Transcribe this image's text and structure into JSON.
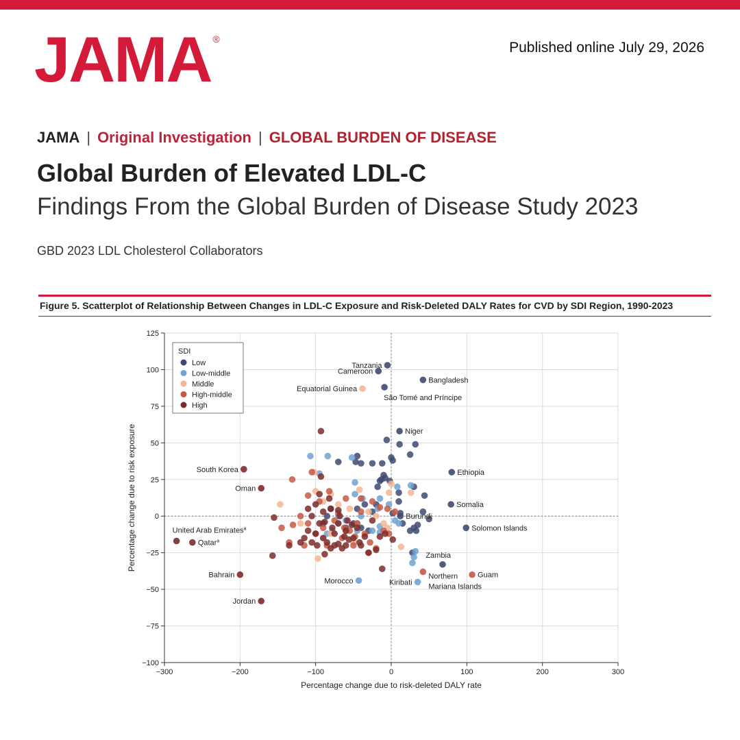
{
  "header": {
    "logo_text": "JAMA",
    "logo_mark": "®",
    "published": "Published online July 29, 2026"
  },
  "kicker": {
    "journal": "JAMA",
    "section": "Original Investigation",
    "topic": "GLOBAL BURDEN OF DISEASE",
    "separator": "|"
  },
  "article": {
    "title": "Global Burden of Elevated LDL-C",
    "subtitle": "Findings From the Global Burden of Disease Study 2023",
    "authors": "GBD 2023 LDL Cholesterol Collaborators"
  },
  "figure": {
    "caption": "Figure 5. Scatterplot of Relationship Between Changes in LDL-C Exposure and Risk-Deleted DALY Rates for CVD by SDI Region, 1990-2023"
  },
  "chart_data": {
    "type": "scatter",
    "xlabel": "Percentage change due to risk-deleted DALY rate",
    "ylabel": "Percentage change due to risk exposure",
    "xlim": [
      -300,
      300
    ],
    "ylim": [
      -100,
      125
    ],
    "xticks": [
      -300,
      -200,
      -100,
      0,
      100,
      200,
      300
    ],
    "yticks": [
      125,
      100,
      75,
      50,
      25,
      0,
      -25,
      -50,
      -75,
      -100
    ],
    "grid": true,
    "reference_lines": [
      "x = 0",
      "y = 0"
    ],
    "legend": {
      "title": "SDI",
      "placement": "top-left",
      "entries": [
        {
          "name": "Low",
          "color": "#3f4a70"
        },
        {
          "name": "Low-middle",
          "color": "#6fa3d2"
        },
        {
          "name": "Middle",
          "color": "#f5b592"
        },
        {
          "name": "High-middle",
          "color": "#c55a47"
        },
        {
          "name": "High",
          "color": "#7d2b2b"
        }
      ]
    },
    "labeled_points": [
      {
        "label": "Tanzania",
        "x": -5,
        "y": 103,
        "group": "Low",
        "anchor": "left"
      },
      {
        "label": "Cameroon",
        "x": -17,
        "y": 99,
        "group": "Low",
        "anchor": "left"
      },
      {
        "label": "Bangladesh",
        "x": 42,
        "y": 93,
        "group": "Low",
        "anchor": "right"
      },
      {
        "label": "Equatorial Guinea",
        "x": -38,
        "y": 87,
        "group": "Middle",
        "anchor": "left"
      },
      {
        "label": "São Tomé and Príncipe",
        "x": -9,
        "y": 88,
        "group": "Low",
        "anchor": "below-right"
      },
      {
        "label": "Niger",
        "x": 11,
        "y": 58,
        "group": "Low",
        "anchor": "right"
      },
      {
        "label": "South Korea",
        "x": -195,
        "y": 32,
        "group": "High",
        "anchor": "left"
      },
      {
        "label": "Oman",
        "x": -172,
        "y": 19,
        "group": "High",
        "anchor": "left"
      },
      {
        "label": "Ethiopia",
        "x": 80,
        "y": 30,
        "group": "Low",
        "anchor": "right"
      },
      {
        "label": "Somalia",
        "x": 79,
        "y": 8,
        "group": "Low",
        "anchor": "right"
      },
      {
        "label": "Burundi",
        "x": 12,
        "y": 0,
        "group": "Low",
        "anchor": "right"
      },
      {
        "label": "Solomon Islands",
        "x": 99,
        "y": -8,
        "group": "Low",
        "anchor": "right"
      },
      {
        "label": "United Arab Emirates",
        "label_sup": "a",
        "x": -284,
        "y": -17,
        "group": "High",
        "anchor": "above-right"
      },
      {
        "label": "Qatar",
        "label_sup": "a",
        "x": -263,
        "y": -18,
        "group": "High",
        "anchor": "right"
      },
      {
        "label": "Zambia",
        "x": 68,
        "y": -33,
        "group": "Low",
        "anchor": "above-left"
      },
      {
        "label": "Bahrain",
        "x": -200,
        "y": -40,
        "group": "High",
        "anchor": "left"
      },
      {
        "label": "Morocco",
        "x": -43,
        "y": -44,
        "group": "Low-middle",
        "anchor": "left"
      },
      {
        "label": "Kiribati",
        "x": 35,
        "y": -45,
        "group": "Low-middle",
        "anchor": "left"
      },
      {
        "label": "Northern Mariana Islands",
        "x": 42,
        "y": -38,
        "group": "High-middle",
        "anchor": "below-right-2line"
      },
      {
        "label": "Guam",
        "x": 107,
        "y": -40,
        "group": "High-middle",
        "anchor": "right"
      },
      {
        "label": "Jordan",
        "x": -172,
        "y": -58,
        "group": "High",
        "anchor": "left"
      }
    ],
    "series": [
      {
        "name": "Low",
        "points": [
          [
            -6,
            52
          ],
          [
            0,
            40
          ],
          [
            -12,
            36
          ],
          [
            -45,
            41
          ],
          [
            -47,
            37
          ],
          [
            -70,
            37
          ],
          [
            -10,
            28
          ],
          [
            -2,
            24
          ],
          [
            -15,
            24
          ],
          [
            11,
            49
          ],
          [
            32,
            49
          ],
          [
            25,
            42
          ],
          [
            2,
            38
          ],
          [
            -40,
            36
          ],
          [
            -25,
            36
          ],
          [
            -13,
            25
          ],
          [
            -8,
            26
          ],
          [
            -18,
            20
          ],
          [
            10,
            16
          ],
          [
            30,
            20
          ],
          [
            44,
            14
          ],
          [
            10,
            10
          ],
          [
            -20,
            8
          ],
          [
            -35,
            8
          ],
          [
            -45,
            5
          ],
          [
            -25,
            3
          ],
          [
            2,
            2
          ],
          [
            12,
            2
          ],
          [
            42,
            3
          ],
          [
            50,
            -2
          ],
          [
            15,
            -5
          ],
          [
            30,
            -8
          ],
          [
            33,
            -10
          ],
          [
            35,
            -6
          ],
          [
            25,
            -10
          ],
          [
            28,
            -25
          ],
          [
            -30,
            -10
          ],
          [
            -40,
            -8
          ],
          [
            -50,
            -5
          ],
          [
            -60,
            -8
          ],
          [
            -80,
            5
          ],
          [
            -85,
            0
          ],
          [
            -90,
            -5
          ]
        ]
      },
      {
        "name": "Low-middle",
        "points": [
          [
            -107,
            41
          ],
          [
            -84,
            41
          ],
          [
            -52,
            40
          ],
          [
            -95,
            29
          ],
          [
            -48,
            23
          ],
          [
            -48,
            15
          ],
          [
            8,
            20
          ],
          [
            26,
            21
          ],
          [
            -38,
            12
          ],
          [
            -15,
            12
          ],
          [
            -3,
            8
          ],
          [
            -18,
            5
          ],
          [
            -40,
            0
          ],
          [
            -45,
            -5
          ],
          [
            -15,
            -7
          ],
          [
            -25,
            -10
          ],
          [
            -15,
            -11
          ],
          [
            -45,
            -10
          ],
          [
            -70,
            0
          ],
          [
            -60,
            -3
          ],
          [
            32,
            -24
          ],
          [
            30,
            -28
          ],
          [
            28,
            -32
          ],
          [
            -70,
            -5
          ],
          [
            -78,
            -10
          ],
          [
            -85,
            -12
          ],
          [
            5,
            -3
          ],
          [
            10,
            -5
          ]
        ]
      },
      {
        "name": "Middle",
        "points": [
          [
            -102,
            30
          ],
          [
            -147,
            8
          ],
          [
            -100,
            17
          ],
          [
            -80,
            15
          ],
          [
            -42,
            18
          ],
          [
            -3,
            16
          ],
          [
            26,
            16
          ],
          [
            0,
            22
          ],
          [
            -90,
            10
          ],
          [
            -70,
            8
          ],
          [
            -55,
            5
          ],
          [
            -30,
            3
          ],
          [
            -20,
            0
          ],
          [
            -10,
            -5
          ],
          [
            -5,
            -8
          ],
          [
            -60,
            -10
          ],
          [
            -80,
            -12
          ],
          [
            13,
            -21
          ],
          [
            -97,
            -29
          ],
          [
            -120,
            -5
          ],
          [
            -90,
            -15
          ],
          [
            -50,
            -18
          ]
        ]
      },
      {
        "name": "High-middle",
        "points": [
          [
            -105,
            30
          ],
          [
            -131,
            25
          ],
          [
            -110,
            14
          ],
          [
            -95,
            10
          ],
          [
            -82,
            17
          ],
          [
            -60,
            12
          ],
          [
            -40,
            12
          ],
          [
            -25,
            10
          ],
          [
            -15,
            6
          ],
          [
            -5,
            5
          ],
          [
            5,
            3
          ],
          [
            -120,
            0
          ],
          [
            -110,
            -5
          ],
          [
            -100,
            -12
          ],
          [
            -90,
            -8
          ],
          [
            -75,
            -3
          ],
          [
            -65,
            -15
          ],
          [
            -55,
            -10
          ],
          [
            -45,
            -5
          ],
          [
            -35,
            -12
          ],
          [
            -28,
            -18
          ],
          [
            -20,
            -22
          ],
          [
            -10,
            -10
          ],
          [
            -3,
            -12
          ],
          [
            -135,
            -18
          ],
          [
            -145,
            -8
          ],
          [
            -115,
            -20
          ],
          [
            -50,
            -20
          ],
          [
            -30,
            -25
          ],
          [
            -40,
            3
          ],
          [
            -130,
            -6
          ],
          [
            -70,
            2
          ],
          [
            -85,
            -20
          ],
          [
            -62,
            -8
          ],
          [
            -48,
            -14
          ]
        ]
      },
      {
        "name": "High",
        "points": [
          [
            -93,
            58
          ],
          [
            -93,
            27
          ],
          [
            -155,
            -1
          ],
          [
            -157,
            -27
          ],
          [
            -135,
            -20
          ],
          [
            -100,
            8
          ],
          [
            -90,
            3
          ],
          [
            -80,
            5
          ],
          [
            -70,
            -5
          ],
          [
            -60,
            -10
          ],
          [
            -50,
            -15
          ],
          [
            -40,
            -20
          ],
          [
            -30,
            -25
          ],
          [
            -20,
            -23
          ],
          [
            -90,
            -15
          ],
          [
            -85,
            -18
          ],
          [
            -80,
            -22
          ],
          [
            -75,
            -12
          ],
          [
            -70,
            -19
          ],
          [
            -65,
            -22
          ],
          [
            -100,
            -12
          ],
          [
            -95,
            -5
          ],
          [
            -110,
            -10
          ],
          [
            -105,
            0
          ],
          [
            -115,
            -15
          ],
          [
            -120,
            -18
          ],
          [
            -88,
            -26
          ],
          [
            -60,
            -20
          ],
          [
            -78,
            -8
          ],
          [
            -68,
            0
          ],
          [
            -58,
            -3
          ],
          [
            -45,
            -8
          ],
          [
            -35,
            -14
          ],
          [
            -105,
            -18
          ],
          [
            -98,
            -20
          ],
          [
            -12,
            -36
          ],
          [
            -8,
            -12
          ],
          [
            2,
            -16
          ],
          [
            -25,
            -3
          ],
          [
            -15,
            -14
          ],
          [
            -70,
            4
          ],
          [
            -82,
            12
          ],
          [
            -95,
            15
          ],
          [
            -110,
            5
          ],
          [
            -62,
            -14
          ],
          [
            -52,
            -6
          ],
          [
            -42,
            -18
          ],
          [
            -75,
            -20
          ],
          [
            -88,
            -4
          ],
          [
            -56,
            -16
          ]
        ]
      }
    ]
  }
}
